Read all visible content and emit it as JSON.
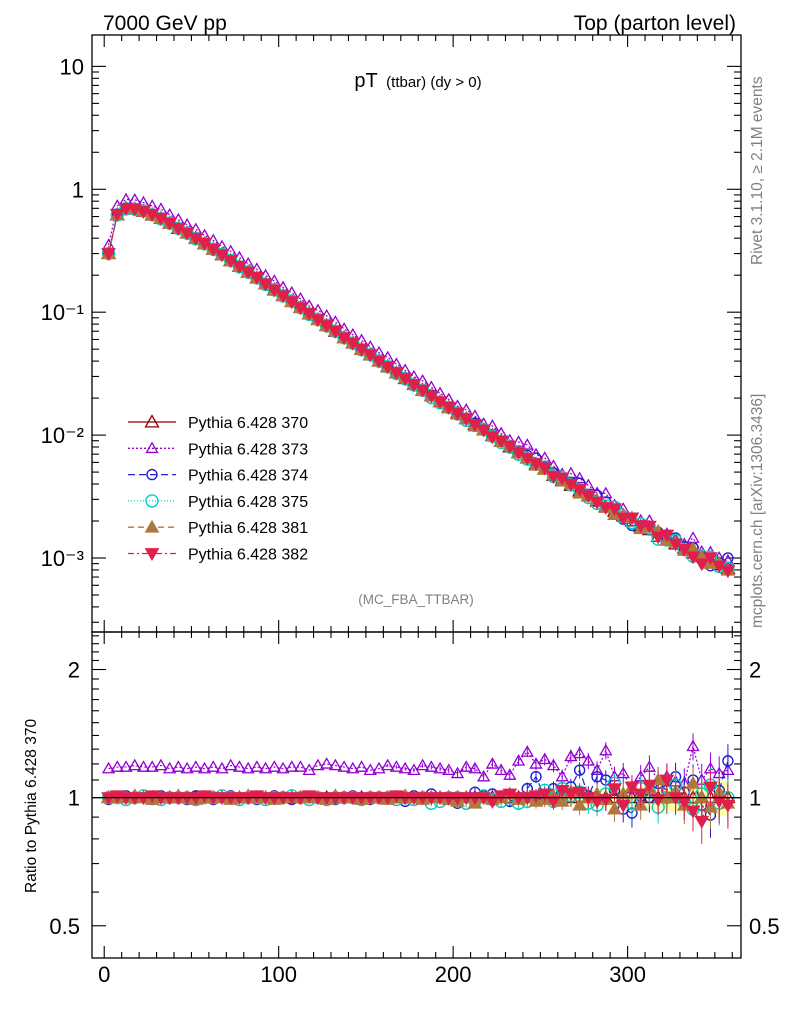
{
  "header": {
    "left": "7000 GeV pp",
    "right": "Top (parton level)"
  },
  "side_labels": {
    "rivet": "Rivet 3.1.10, ≥ 2.1M events",
    "mcplots": "mcplots.cern.ch [arXiv:1306.3436]"
  },
  "chart_data": [
    {
      "type": "line",
      "panel": "main",
      "title_main": "pT",
      "title_sub": "(ttbar) (dy > 0)",
      "watermark": "(MC_FBA_TTBAR)",
      "yscale": "log",
      "ylim": [
        0.00025,
        18
      ],
      "xlim": [
        -7,
        365
      ],
      "yticks": [
        {
          "value": 10,
          "label": "10"
        },
        {
          "value": 1,
          "label": "1"
        },
        {
          "value": 0.1,
          "label": "10⁻¹"
        },
        {
          "value": 0.01,
          "label": "10⁻²"
        },
        {
          "value": 0.001,
          "label": "10⁻³"
        }
      ],
      "x": [
        2.5,
        7.5,
        12.5,
        17.5,
        22.5,
        27.5,
        32.5,
        37.5,
        42.5,
        47.5,
        52.5,
        57.5,
        62.5,
        67.5,
        72.5,
        77.5,
        82.5,
        87.5,
        92.5,
        97.5,
        102.5,
        107.5,
        112.5,
        117.5,
        122.5,
        127.5,
        132.5,
        137.5,
        142.5,
        147.5,
        152.5,
        157.5,
        162.5,
        167.5,
        172.5,
        177.5,
        182.5,
        187.5,
        192.5,
        197.5,
        202.5,
        207.5,
        212.5,
        217.5,
        222.5,
        227.5,
        232.5,
        237.5,
        242.5,
        247.5,
        252.5,
        257.5,
        262.5,
        267.5,
        272.5,
        277.5,
        282.5,
        287.5,
        292.5,
        297.5,
        302.5,
        307.5,
        312.5,
        317.5,
        322.5,
        327.5,
        332.5,
        337.5,
        342.5,
        347.5,
        352.5,
        357.5
      ],
      "reference": [
        0.3,
        0.62,
        0.7,
        0.69,
        0.66,
        0.62,
        0.58,
        0.53,
        0.48,
        0.44,
        0.4,
        0.36,
        0.325,
        0.293,
        0.263,
        0.236,
        0.212,
        0.19,
        0.17,
        0.152,
        0.136,
        0.122,
        0.109,
        0.097,
        0.087,
        0.078,
        0.07,
        0.062,
        0.056,
        0.05,
        0.045,
        0.04,
        0.036,
        0.032,
        0.0288,
        0.0258,
        0.0232,
        0.0208,
        0.0187,
        0.0168,
        0.0151,
        0.0136,
        0.0122,
        0.011,
        0.0099,
        0.0089,
        0.008,
        0.0072,
        0.0065,
        0.0058,
        0.0053,
        0.0047,
        0.0043,
        0.0039,
        0.0035,
        0.0032,
        0.0029,
        0.0026,
        0.0024,
        0.0022,
        0.002,
        0.0018,
        0.0017,
        0.0015,
        0.0014,
        0.0013,
        0.0012,
        0.0011,
        0.00102,
        0.00095,
        0.00088,
        0.00082
      ],
      "series": [
        {
          "name": "Pythia 6.428 370",
          "color": "#8b0000",
          "dash": "",
          "marker": "triangle-up-open",
          "ratio": [
            1.0,
            1.0,
            1.0,
            1.0,
            1.0,
            1.0,
            1.0,
            1.0,
            1.0,
            1.0,
            1.0,
            1.0,
            1.0,
            1.0,
            1.0,
            1.0,
            1.0,
            1.0,
            1.0,
            1.0,
            1.0,
            1.0,
            1.0,
            1.0,
            1.0,
            1.0,
            1.0,
            1.0,
            1.0,
            1.0,
            1.0,
            1.0,
            1.0,
            1.0,
            1.0,
            1.0,
            1.0,
            1.0,
            1.0,
            1.0,
            1.0,
            1.0,
            1.0,
            1.0,
            1.0,
            1.0,
            1.0,
            1.0,
            1.0,
            1.0,
            1.0,
            1.0,
            1.0,
            1.0,
            1.0,
            1.0,
            1.0,
            1.0,
            1.0,
            1.0,
            1.0,
            1.0,
            1.0,
            1.0,
            1.0,
            1.0,
            1.0,
            1.0,
            1.0,
            1.0,
            1.0,
            1.0
          ]
        },
        {
          "name": "Pythia 6.428 373",
          "color": "#9400d3",
          "dash": "2,2",
          "marker": "triangle-up-open-small",
          "ratio": [
            1.17,
            1.18,
            1.18,
            1.19,
            1.18,
            1.18,
            1.19,
            1.17,
            1.18,
            1.17,
            1.18,
            1.17,
            1.18,
            1.17,
            1.19,
            1.18,
            1.17,
            1.18,
            1.17,
            1.18,
            1.17,
            1.18,
            1.18,
            1.16,
            1.19,
            1.2,
            1.19,
            1.18,
            1.17,
            1.18,
            1.16,
            1.17,
            1.19,
            1.18,
            1.17,
            1.16,
            1.19,
            1.18,
            1.17,
            1.16,
            1.14,
            1.18,
            1.17,
            1.12,
            1.2,
            1.16,
            1.13,
            1.22,
            1.28,
            1.2,
            1.23,
            1.19,
            1.12,
            1.25,
            1.27,
            1.22,
            1.16,
            1.29,
            1.12,
            1.14,
            1.05,
            1.12,
            1.18,
            1.1,
            1.12,
            1.09,
            1.08,
            1.32,
            1.1,
            1.17,
            1.14,
            1.16
          ]
        },
        {
          "name": "Pythia 6.428 374",
          "color": "#2020d0",
          "dash": "7,4",
          "marker": "circle-open",
          "ratio": [
            0.99,
            1.0,
            1.01,
            1.0,
            1.0,
            0.99,
            1.01,
            1.0,
            1.0,
            0.99,
            1.01,
            1.0,
            0.99,
            1.0,
            1.01,
            1.0,
            1.0,
            0.99,
            1.0,
            1.01,
            1.0,
            0.99,
            1.0,
            1.0,
            1.0,
            1.0,
            0.99,
            1.0,
            1.01,
            1.0,
            0.99,
            1.0,
            1.0,
            1.0,
            0.98,
            1.01,
            1.0,
            1.02,
            1.0,
            0.99,
            0.97,
            1.0,
            1.03,
            1.01,
            1.02,
            1.0,
            0.98,
            1.0,
            1.05,
            1.12,
            1.0,
            1.05,
            1.02,
            1.06,
            1.16,
            1.01,
            1.12,
            1.1,
            1.04,
            0.94,
            0.92,
            1.01,
            1.0,
            1.08,
            1.04,
            1.12,
            1.03,
            1.1,
            0.96,
            0.91,
            1.04,
            1.22
          ]
        },
        {
          "name": "Pythia 6.428 375",
          "color": "#00d0c0",
          "dash": "1,2",
          "marker": "circle-open-large",
          "ratio": [
            1.0,
            1.0,
            0.99,
            1.0,
            1.01,
            1.0,
            0.99,
            1.0,
            1.0,
            1.0,
            0.99,
            1.0,
            1.0,
            1.01,
            1.0,
            0.99,
            1.0,
            1.0,
            0.99,
            1.0,
            1.0,
            1.01,
            1.0,
            0.99,
            1.0,
            0.99,
            1.0,
            1.0,
            1.0,
            0.99,
            1.0,
            1.0,
            1.0,
            0.99,
            1.0,
            0.99,
            1.0,
            0.97,
            0.98,
            1.0,
            1.0,
            0.97,
            0.98,
            1.01,
            0.99,
            0.98,
            1.0,
            0.97,
            0.98,
            1.0,
            1.04,
            0.98,
            1.05,
            1.01,
            1.03,
            0.97,
            0.96,
            1.02,
            1.08,
            0.98,
            0.97,
            1.05,
            1.03,
            0.95,
            1.0,
            1.07,
            0.98,
            0.94,
            1.02,
            1.07,
            0.97,
            1.0
          ]
        },
        {
          "name": "Pythia 6.428 381",
          "color": "#b07840",
          "dash": "6,4",
          "marker": "triangle-up-filled",
          "ratio": [
            1.0,
            1.0,
            1.0,
            1.01,
            1.0,
            0.99,
            1.0,
            1.0,
            1.01,
            1.0,
            0.99,
            1.0,
            1.0,
            1.0,
            0.99,
            1.0,
            1.01,
            1.0,
            1.0,
            0.99,
            1.0,
            1.0,
            1.0,
            1.0,
            1.0,
            0.99,
            1.01,
            1.0,
            1.0,
            0.99,
            1.0,
            1.0,
            0.99,
            1.0,
            1.01,
            1.0,
            0.99,
            1.0,
            1.0,
            0.99,
            0.98,
            1.0,
            0.97,
            1.0,
            0.99,
            1.0,
            1.02,
            0.99,
            1.0,
            0.98,
            0.99,
            1.01,
            0.98,
            1.03,
            0.96,
            1.0,
            1.02,
            0.99,
            0.94,
            1.02,
            1.06,
            0.96,
            1.05,
            1.1,
            1.0,
            1.03,
            0.96,
            1.08,
            1.0,
            0.95,
            1.03,
            0.97
          ]
        },
        {
          "name": "Pythia 6.428 382",
          "color": "#e0204c",
          "dash": "6,3,2,3",
          "marker": "triangle-down-filled",
          "ratio": [
            1.0,
            1.01,
            1.0,
            1.0,
            1.0,
            1.01,
            1.0,
            1.0,
            1.0,
            1.0,
            1.0,
            1.01,
            1.0,
            1.0,
            1.0,
            1.0,
            1.0,
            1.01,
            1.0,
            1.0,
            1.0,
            1.0,
            1.0,
            1.01,
            1.0,
            1.0,
            1.0,
            1.0,
            1.0,
            1.0,
            1.0,
            1.0,
            1.0,
            1.01,
            1.0,
            1.0,
            1.0,
            1.0,
            1.0,
            1.0,
            1.0,
            1.0,
            1.0,
            1.0,
            0.98,
            1.01,
            1.02,
            1.0,
            1.0,
            1.01,
            1.02,
            0.98,
            1.04,
            1.02,
            1.03,
            1.0,
            0.98,
            0.99,
            1.05,
            0.96,
            1.06,
            1.02,
            1.07,
            0.99,
            1.1,
            1.0,
            0.98,
            0.93,
            0.88,
            1.06,
            0.98,
            0.96
          ]
        }
      ]
    },
    {
      "type": "line",
      "panel": "ratio",
      "ylabel": "Ratio to Pythia 6.428 370",
      "yscale": "log",
      "ylim": [
        0.42,
        2.45
      ],
      "yticks": [
        {
          "value": 2,
          "label": "2"
        },
        {
          "value": 1,
          "label": "1"
        },
        {
          "value": 0.5,
          "label": "0.5"
        }
      ],
      "xticks": [
        {
          "value": 0,
          "label": "0"
        },
        {
          "value": 100,
          "label": "100"
        },
        {
          "value": 200,
          "label": "200"
        },
        {
          "value": 300,
          "label": "300"
        }
      ],
      "xlim": [
        -7,
        365
      ]
    }
  ]
}
